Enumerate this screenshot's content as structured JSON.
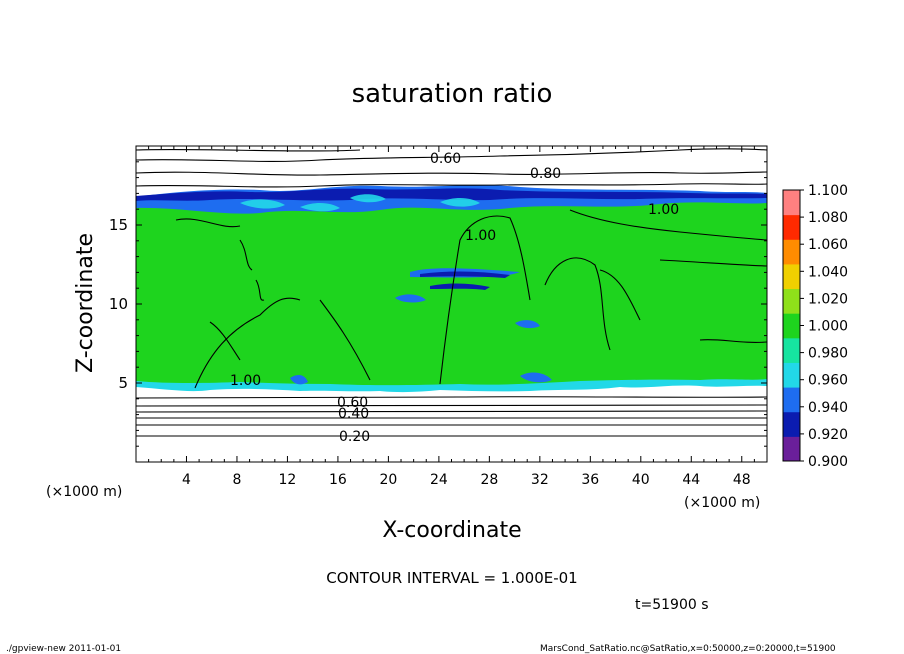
{
  "chart_data": {
    "type": "heatmap",
    "title": "saturation ratio",
    "xlabel": "X-coordinate",
    "ylabel": "Z-coordinate",
    "x_unit": "(×1000 m)",
    "y_unit": "(×1000 m)",
    "xlim": [
      0,
      50
    ],
    "ylim": [
      0,
      20
    ],
    "x_ticks": [
      "4",
      "8",
      "12",
      "16",
      "20",
      "24",
      "28",
      "32",
      "36",
      "40",
      "44",
      "48"
    ],
    "y_ticks": [
      "5",
      "10",
      "15"
    ],
    "contour_interval_text": "CONTOUR INTERVAL = 1.000E-01",
    "time_text": "t=51900 s",
    "footer_left": "./gpview-new  2011-01-01",
    "footer_right": "MarsCond_SatRatio.nc@SatRatio,x=0:50000,z=0:20000,t=51900",
    "colorbar": {
      "levels": [
        "0.900",
        "0.920",
        "0.940",
        "0.960",
        "0.980",
        "1.000",
        "1.020",
        "1.040",
        "1.060",
        "1.080",
        "1.100"
      ],
      "colors": [
        "#6a1f9a",
        "#0b1cb0",
        "#1e6df0",
        "#22d8e8",
        "#16e4a0",
        "#1ed41e",
        "#8fe01a",
        "#f0d000",
        "#ff8c00",
        "#ff2a00",
        "#ff8080"
      ]
    },
    "contour_labels": [
      {
        "text": "0.60",
        "x": 24.5,
        "z": 19.0
      },
      {
        "text": "0.80",
        "x": 32.6,
        "z": 18.0
      },
      {
        "text": "1.00",
        "x": 26.5,
        "z": 14.6
      },
      {
        "text": "1.00",
        "x": 42.0,
        "z": 15.8
      },
      {
        "text": "1.00",
        "x": 8.8,
        "z": 5.1
      },
      {
        "text": "0.60",
        "x": 18.6,
        "z": 3.6
      },
      {
        "text": "0.40",
        "x": 17.7,
        "z": 3.0
      },
      {
        "text": "0.20",
        "x": 17.6,
        "z": 1.6
      }
    ],
    "moist_layer_z": [
      4.5,
      16.5
    ],
    "dry_contour_levels_below": [
      0.8,
      0.6,
      0.4,
      0.3,
      0.2
    ],
    "dry_contour_levels_above": [
      0.8,
      0.6
    ],
    "grid": false,
    "legend": "colorbar-right"
  }
}
